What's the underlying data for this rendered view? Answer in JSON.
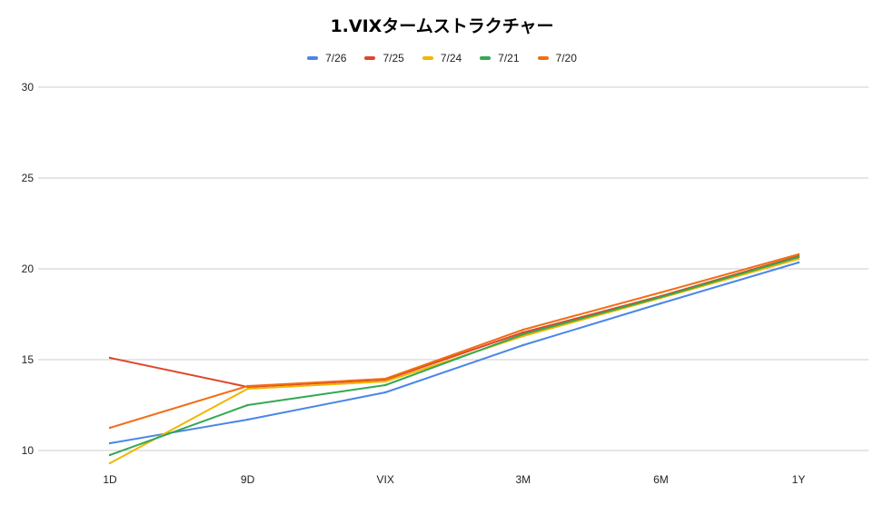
{
  "chart_data": {
    "type": "line",
    "title": "1.VIXタームストラクチャー",
    "xlabel": "",
    "ylabel": "",
    "categories": [
      "1D",
      "9D",
      "VIX",
      "3M",
      "6M",
      "1Y"
    ],
    "ylim": [
      10,
      30
    ],
    "yticks": [
      10,
      15,
      20,
      25,
      30
    ],
    "grid": true,
    "legend_position": "top",
    "series": [
      {
        "name": "7/26",
        "color": "#4a86e8",
        "values": [
          10.4,
          11.7,
          13.2,
          15.8,
          18.1,
          20.35
        ]
      },
      {
        "name": "7/25",
        "color": "#e0452b",
        "values": [
          15.1,
          13.5,
          13.9,
          16.5,
          18.5,
          20.7
        ]
      },
      {
        "name": "7/24",
        "color": "#f4b400",
        "values": [
          9.3,
          13.4,
          13.8,
          16.3,
          18.4,
          20.55
        ]
      },
      {
        "name": "7/21",
        "color": "#34a853",
        "values": [
          9.75,
          12.5,
          13.6,
          16.4,
          18.45,
          20.65
        ]
      },
      {
        "name": "7/20",
        "color": "#f16e14",
        "values": [
          11.25,
          13.55,
          13.95,
          16.65,
          18.7,
          20.8
        ]
      }
    ]
  }
}
